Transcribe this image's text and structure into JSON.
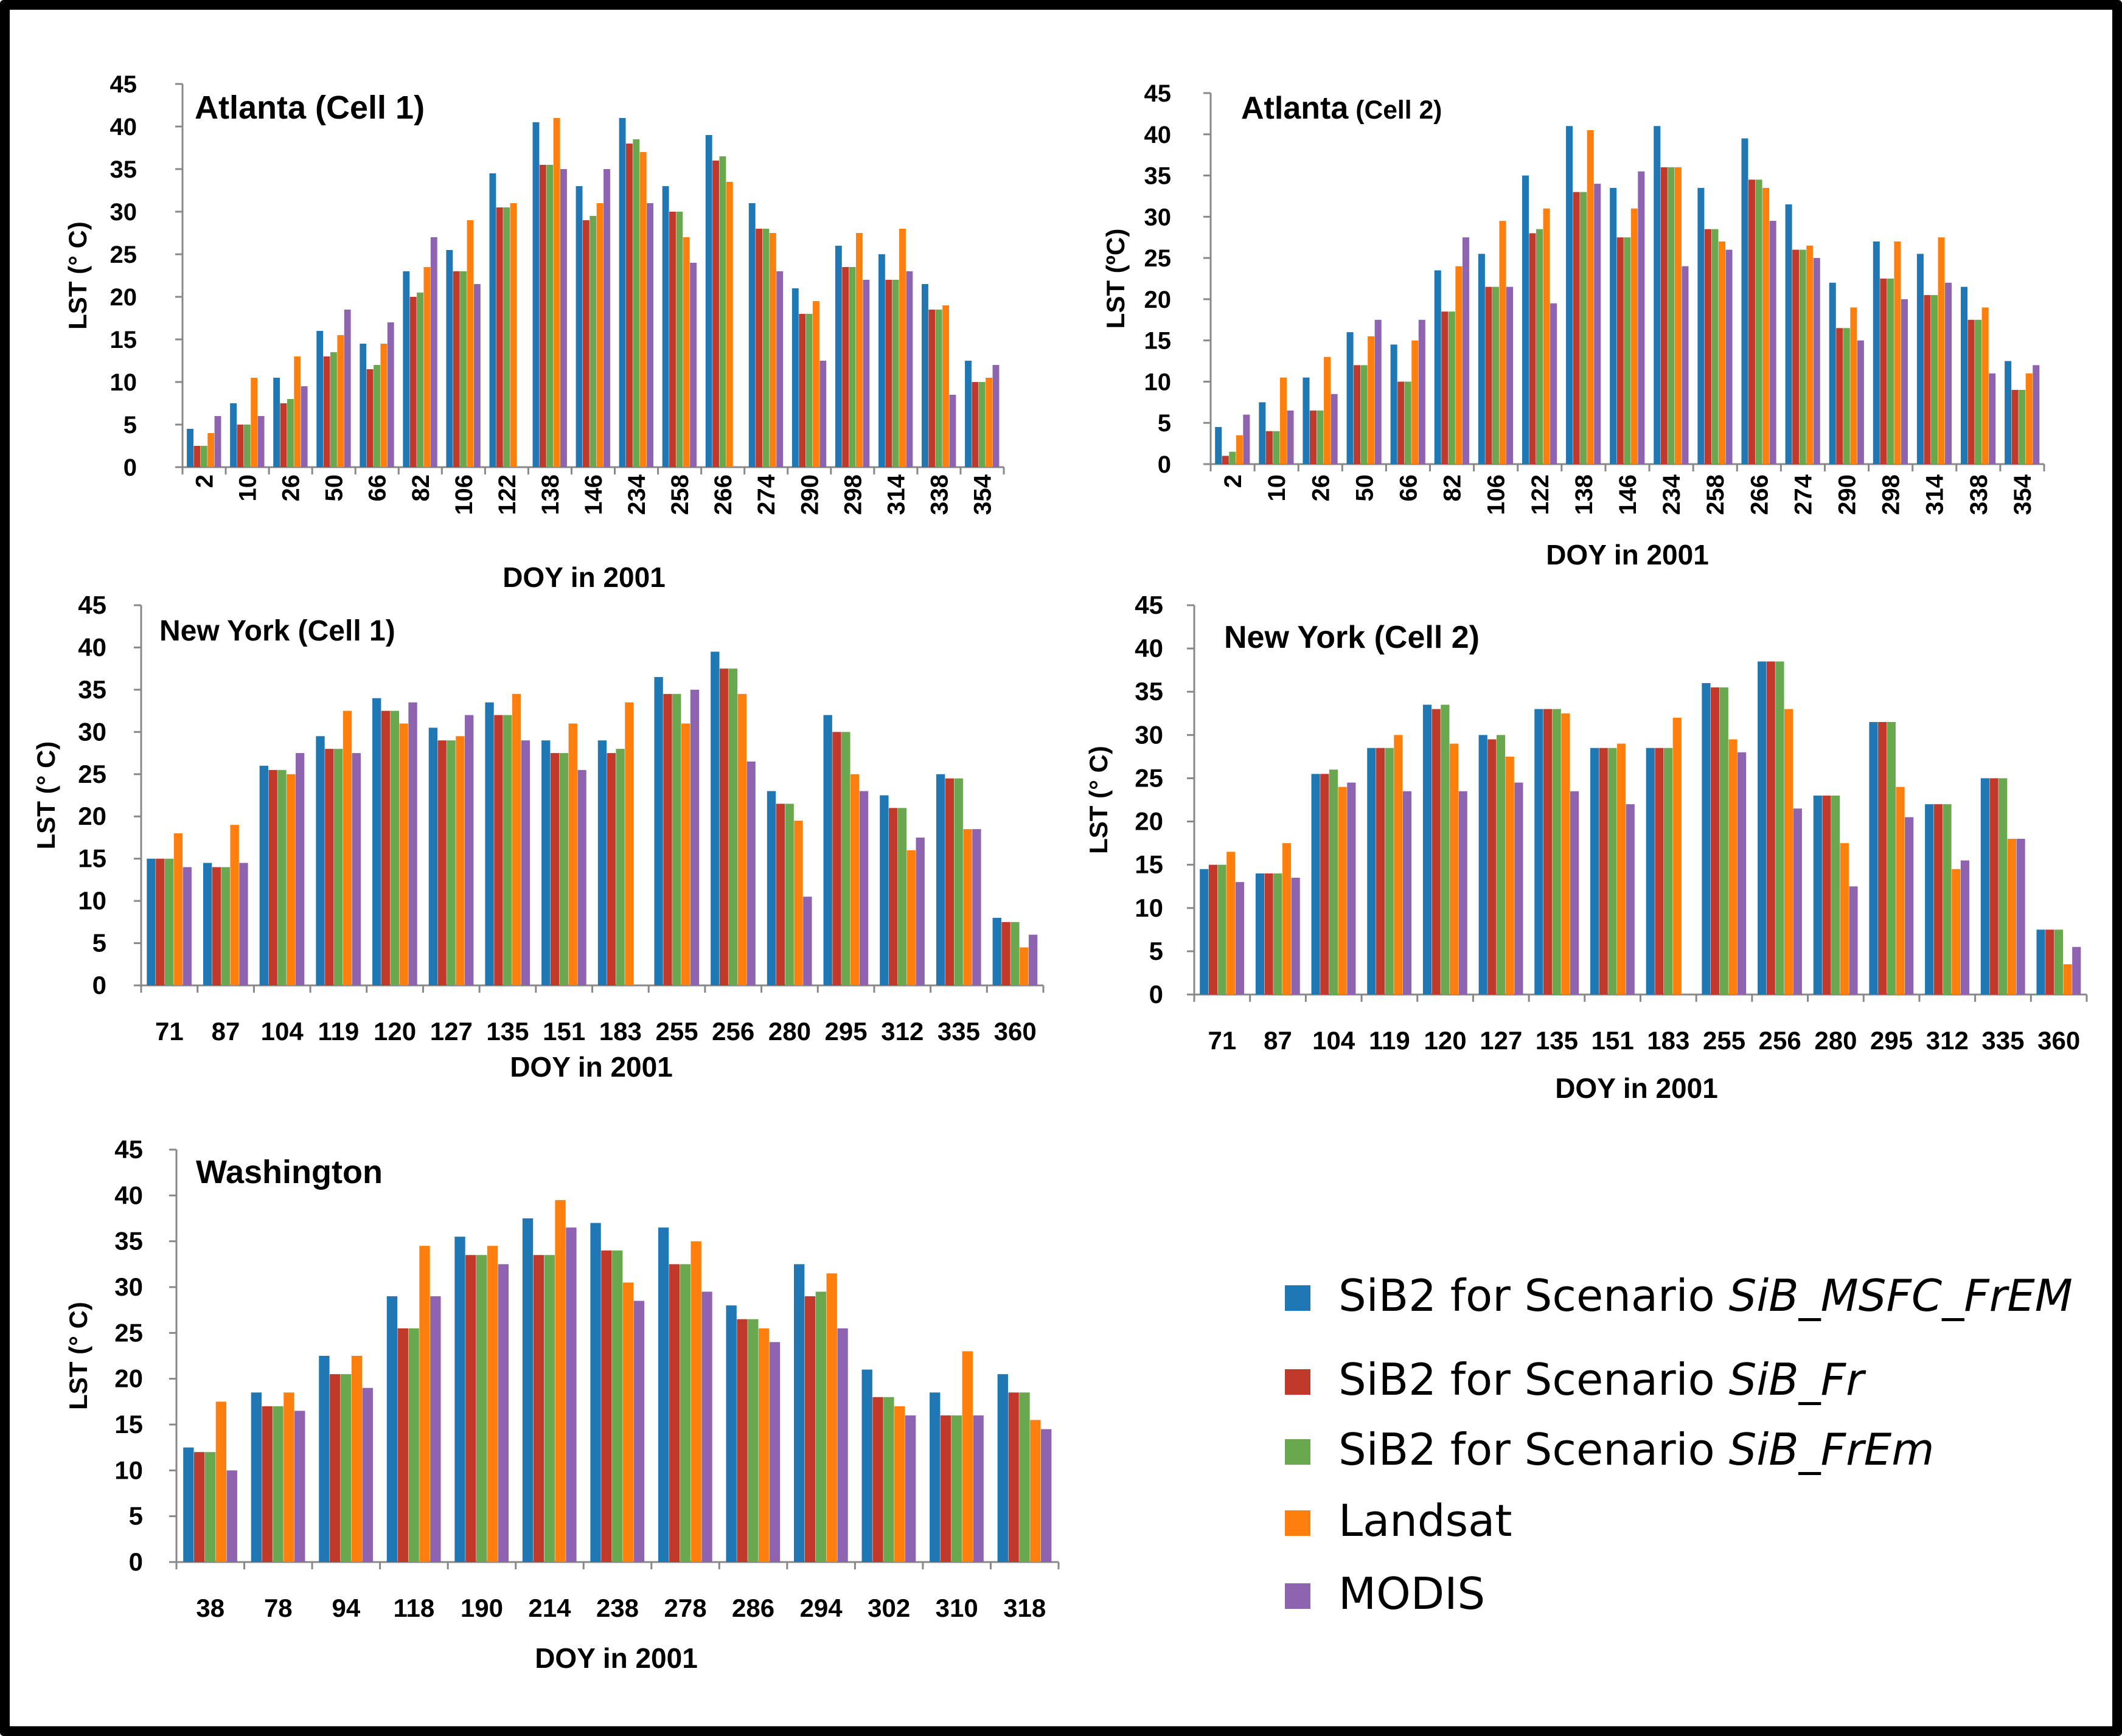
{
  "colors": {
    "sib_msfc_frem": "#1f77b4",
    "sib_fr": "#c0392b",
    "sib_frem": "#6aa84f",
    "landsat": "#ff7f0e",
    "modis": "#8e63b0"
  },
  "legend": [
    {
      "prefix": "SiB2 for Scenario ",
      "italic": "SiB_MSFC_FrEM",
      "color": "#1f77b4"
    },
    {
      "prefix": "SiB2 for Scenario ",
      "italic": "SiB_Fr",
      "color": "#c0392b"
    },
    {
      "prefix": "SiB2 for Scenario ",
      "italic": "SiB_FrEm",
      "color": "#6aa84f"
    },
    {
      "prefix": "Landsat",
      "italic": "",
      "color": "#ff7f0e"
    },
    {
      "prefix": "MODIS",
      "italic": "",
      "color": "#8e63b0"
    }
  ],
  "chart_data": [
    {
      "type": "bar",
      "title": "Atlanta (Cell 1)",
      "xlabel": "DOY in 2001",
      "ylabel": "LST (° C)",
      "ylim": [
        0,
        45
      ],
      "yticks": [
        "0",
        "5",
        "10",
        "15",
        "20",
        "25",
        "30",
        "35",
        "40",
        "45"
      ],
      "categories": [
        "2",
        "10",
        "26",
        "50",
        "66",
        "82",
        "106",
        "122",
        "138",
        "146",
        "234",
        "258",
        "266",
        "274",
        "290",
        "298",
        "314",
        "338",
        "354"
      ],
      "series": [
        {
          "name": "SiB2 for Scenario SiB_MSFC_FrEM",
          "values": [
            4.5,
            7.5,
            10.5,
            16,
            14.5,
            23,
            25.5,
            34.5,
            40.5,
            33,
            41,
            33,
            39,
            31,
            21,
            26,
            25,
            21.5,
            12.5
          ]
        },
        {
          "name": "SiB2 for Scenario SiB_Fr",
          "values": [
            2.5,
            5,
            7.5,
            13,
            11.5,
            20,
            23,
            30.5,
            35.5,
            29,
            38,
            30,
            36,
            28,
            18,
            23.5,
            22,
            18.5,
            10
          ]
        },
        {
          "name": "SiB2 for Scenario SiB_FrEm",
          "values": [
            2.5,
            5,
            8,
            13.5,
            12,
            20.5,
            23,
            30.5,
            35.5,
            29.5,
            38.5,
            30,
            36.5,
            28,
            18,
            23.5,
            22,
            18.5,
            10
          ]
        },
        {
          "name": "Landsat",
          "values": [
            4,
            10.5,
            13,
            15.5,
            14.5,
            23.5,
            29,
            31,
            41,
            31,
            37,
            27,
            33.5,
            27.5,
            19.5,
            27.5,
            28,
            19,
            10.5
          ]
        },
        {
          "name": "MODIS",
          "values": [
            6,
            6,
            9.5,
            18.5,
            17,
            27,
            21.5,
            0,
            35,
            35,
            31,
            24,
            0,
            23,
            12.5,
            22,
            23,
            8.5,
            12
          ]
        }
      ]
    },
    {
      "type": "bar",
      "title": "Atlanta",
      "title_small": "(Cell 2)",
      "xlabel": "DOY in 2001",
      "ylabel": "LST (ºC)",
      "ylim": [
        0,
        45
      ],
      "yticks": [
        "0",
        "5",
        "10",
        "15",
        "20",
        "25",
        "30",
        "35",
        "40",
        "45"
      ],
      "categories": [
        "2",
        "10",
        "26",
        "50",
        "66",
        "82",
        "106",
        "122",
        "138",
        "146",
        "234",
        "258",
        "266",
        "274",
        "290",
        "298",
        "314",
        "338",
        "354"
      ],
      "series": [
        {
          "name": "SiB2 for Scenario SiB_MSFC_FrEM",
          "values": [
            4.5,
            7.5,
            10.5,
            16,
            14.5,
            23.5,
            25.5,
            35,
            41,
            33.5,
            41,
            33.5,
            39.5,
            31.5,
            22,
            27,
            25.5,
            21.5,
            12.5
          ]
        },
        {
          "name": "SiB2 for Scenario SiB_Fr",
          "values": [
            1,
            4,
            6.5,
            12,
            10,
            18.5,
            21.5,
            28,
            33,
            27.5,
            36,
            28.5,
            34.5,
            26,
            16.5,
            22.5,
            20.5,
            17.5,
            9
          ]
        },
        {
          "name": "SiB2 for Scenario SiB_FrEm",
          "values": [
            1.5,
            4,
            6.5,
            12,
            10,
            18.5,
            21.5,
            28.5,
            33,
            27.5,
            36,
            28.5,
            34.5,
            26,
            16.5,
            22.5,
            20.5,
            17.5,
            9
          ]
        },
        {
          "name": "Landsat",
          "values": [
            3.5,
            10.5,
            13,
            15.5,
            15,
            24,
            29.5,
            31,
            40.5,
            31,
            36,
            27,
            33.5,
            26.5,
            19,
            27,
            27.5,
            19,
            11
          ]
        },
        {
          "name": "MODIS",
          "values": [
            6,
            6.5,
            8.5,
            17.5,
            17.5,
            27.5,
            21.5,
            19.5,
            34,
            35.5,
            24,
            26,
            29.5,
            25,
            15,
            20,
            22,
            11,
            12
          ]
        }
      ]
    },
    {
      "type": "bar",
      "title": "New York (Cell 1)",
      "xlabel": "DOY in 2001",
      "ylabel": "LST (° C)",
      "ylim": [
        0,
        45
      ],
      "yticks": [
        "0",
        "5",
        "10",
        "15",
        "20",
        "25",
        "30",
        "35",
        "40",
        "45"
      ],
      "categories": [
        "71",
        "87",
        "104",
        "119",
        "120",
        "127",
        "135",
        "151",
        "183",
        "255",
        "256",
        "280",
        "295",
        "312",
        "335",
        "360"
      ],
      "series": [
        {
          "name": "SiB2 for Scenario SiB_MSFC_FrEM",
          "values": [
            15,
            14.5,
            26,
            29.5,
            34,
            30.5,
            33.5,
            29,
            29,
            36.5,
            39.5,
            23,
            32,
            22.5,
            25,
            8
          ]
        },
        {
          "name": "SiB2 for Scenario SiB_Fr",
          "values": [
            15,
            14,
            25.5,
            28,
            32.5,
            29,
            32,
            27.5,
            27.5,
            34.5,
            37.5,
            21.5,
            30,
            21,
            24.5,
            7.5
          ]
        },
        {
          "name": "SiB2 for Scenario SiB_FrEm",
          "values": [
            15,
            14,
            25.5,
            28,
            32.5,
            29,
            32,
            27.5,
            28,
            34.5,
            37.5,
            21.5,
            30,
            21,
            24.5,
            7.5
          ]
        },
        {
          "name": "Landsat",
          "values": [
            18,
            19,
            25,
            32.5,
            31,
            29.5,
            34.5,
            31,
            33.5,
            31,
            34.5,
            19.5,
            25,
            16,
            18.5,
            4.5
          ]
        },
        {
          "name": "MODIS",
          "values": [
            14,
            14.5,
            27.5,
            27.5,
            33.5,
            32,
            29,
            25.5,
            0,
            35,
            26.5,
            10.5,
            23,
            17.5,
            18.5,
            6
          ]
        }
      ]
    },
    {
      "type": "bar",
      "title": "New York (Cell 2)",
      "xlabel": "DOY in 2001",
      "ylabel": "LST (° C)",
      "ylim": [
        0,
        45
      ],
      "yticks": [
        "0",
        "5",
        "10",
        "15",
        "20",
        "25",
        "30",
        "35",
        "40",
        "45"
      ],
      "categories": [
        "71",
        "87",
        "104",
        "119",
        "120",
        "127",
        "135",
        "151",
        "183",
        "255",
        "256",
        "280",
        "295",
        "312",
        "335",
        "360"
      ],
      "series": [
        {
          "name": "SiB2 for Scenario SiB_MSFC_FrEM",
          "values": [
            14.5,
            14,
            25.5,
            28.5,
            33.5,
            30,
            33,
            28.5,
            28.5,
            36,
            38.5,
            23,
            31.5,
            22,
            25,
            7.5
          ]
        },
        {
          "name": "SiB2 for Scenario SiB_Fr",
          "values": [
            15,
            14,
            25.5,
            28.5,
            33,
            29.5,
            33,
            28.5,
            28.5,
            35.5,
            38.5,
            23,
            31.5,
            22,
            25,
            7.5
          ]
        },
        {
          "name": "SiB2 for Scenario SiB_FrEm",
          "values": [
            15,
            14,
            26,
            28.5,
            33.5,
            30,
            33,
            28.5,
            28.5,
            35.5,
            38.5,
            23,
            31.5,
            22,
            25,
            7.5
          ]
        },
        {
          "name": "Landsat",
          "values": [
            16.5,
            17.5,
            24,
            30,
            29,
            27.5,
            32.5,
            29,
            32,
            29.5,
            33,
            17.5,
            24,
            14.5,
            18,
            3.5
          ]
        },
        {
          "name": "MODIS",
          "values": [
            13,
            13.5,
            24.5,
            23.5,
            23.5,
            24.5,
            23.5,
            22,
            0,
            28,
            21.5,
            12.5,
            20.5,
            15.5,
            18,
            5.5
          ]
        }
      ]
    },
    {
      "type": "bar",
      "title": "Washington",
      "xlabel": "DOY in 2001",
      "ylabel": "LST (° C)",
      "ylim": [
        0,
        45
      ],
      "yticks": [
        "0",
        "5",
        "10",
        "15",
        "20",
        "25",
        "30",
        "35",
        "40",
        "45"
      ],
      "categories": [
        "38",
        "78",
        "94",
        "118",
        "190",
        "214",
        "238",
        "278",
        "286",
        "294",
        "302",
        "310",
        "318"
      ],
      "series": [
        {
          "name": "SiB2 for Scenario SiB_MSFC_FrEM",
          "values": [
            12.5,
            18.5,
            22.5,
            29,
            35.5,
            37.5,
            37,
            36.5,
            28,
            32.5,
            21,
            18.5,
            20.5
          ]
        },
        {
          "name": "SiB2 for Scenario SiB_Fr",
          "values": [
            12,
            17,
            20.5,
            25.5,
            33.5,
            33.5,
            34,
            32.5,
            26.5,
            29,
            18,
            16,
            18.5
          ]
        },
        {
          "name": "SiB2 for Scenario SiB_FrEm",
          "values": [
            12,
            17,
            20.5,
            25.5,
            33.5,
            33.5,
            34,
            32.5,
            26.5,
            29.5,
            18,
            16,
            18.5
          ]
        },
        {
          "name": "Landsat",
          "values": [
            17.5,
            18.5,
            22.5,
            34.5,
            34.5,
            39.5,
            30.5,
            35,
            25.5,
            31.5,
            17,
            23,
            15.5
          ]
        },
        {
          "name": "MODIS",
          "values": [
            10,
            16.5,
            19,
            29,
            32.5,
            36.5,
            28.5,
            29.5,
            24,
            25.5,
            16,
            16,
            14.5
          ]
        }
      ]
    }
  ]
}
